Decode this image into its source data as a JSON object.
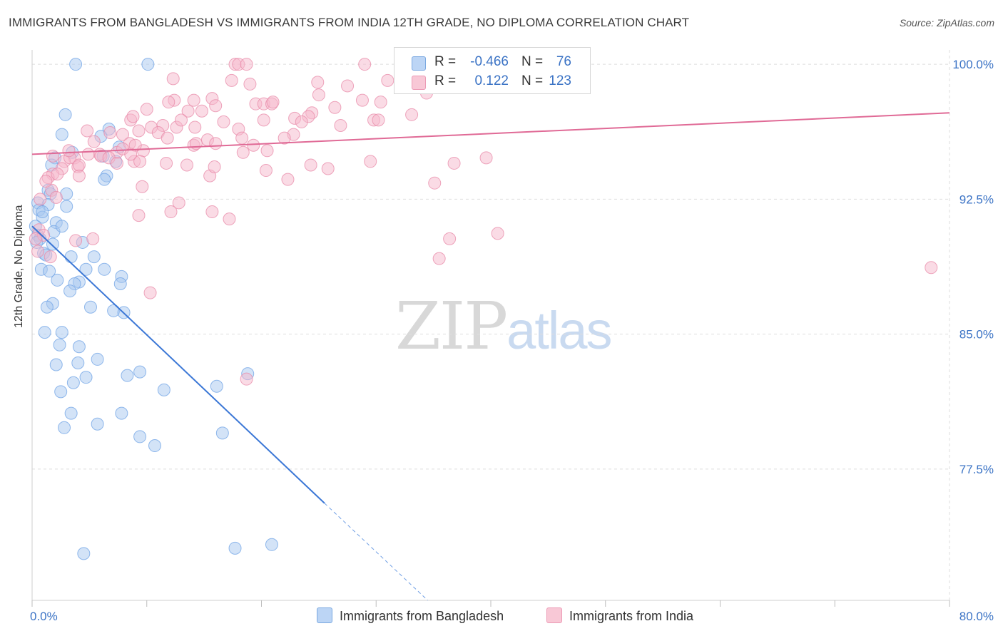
{
  "title": "IMMIGRANTS FROM BANGLADESH VS IMMIGRANTS FROM INDIA 12TH GRADE, NO DIPLOMA CORRELATION CHART",
  "source": "Source: ZipAtlas.com",
  "watermark": {
    "zip": "ZIP",
    "atlas": "atlas"
  },
  "legend": {
    "rows": [
      {
        "r_label": "R =",
        "r_value": "-0.466",
        "n_label": "N =",
        "n_value": "76",
        "color": "#a8c8f0"
      },
      {
        "r_label": "R =",
        "r_value": "0.122",
        "n_label": "N =",
        "n_value": "123",
        "color": "#f6b8cc"
      }
    ]
  },
  "bottom_legend": [
    {
      "label": "Immigrants from Bangladesh",
      "color": "#a8c8f0"
    },
    {
      "label": "Immigrants from India",
      "color": "#f6b8cc"
    }
  ],
  "chart_data": {
    "type": "scatter",
    "title": "IMMIGRANTS FROM BANGLADESH VS IMMIGRANTS FROM INDIA 12TH GRADE, NO DIPLOMA CORRELATION CHART",
    "xlabel": "",
    "ylabel": "12th Grade, No Diploma",
    "xlim": [
      0,
      80
    ],
    "ylim": [
      70.2,
      100.8
    ],
    "x_tick_labels": [
      {
        "value": 0,
        "label": "0.0%"
      },
      {
        "value": 80,
        "label": "80.0%"
      }
    ],
    "y_tick_labels": [
      {
        "value": 100.0,
        "label": "100.0%"
      },
      {
        "value": 92.5,
        "label": "92.5%"
      },
      {
        "value": 85.0,
        "label": "85.0%"
      },
      {
        "value": 77.5,
        "label": "77.5%"
      }
    ],
    "grid": true,
    "legend_position": "top-center",
    "series": [
      {
        "name": "Immigrants from Bangladesh",
        "color": "#6fa3e6",
        "fill": "#a8c8f0",
        "R": -0.466,
        "N": 76,
        "trend": {
          "x": [
            0,
            25.5
          ],
          "y": [
            91.0,
            75.6
          ]
        },
        "trend_dashed": {
          "x": [
            25.5,
            34.5
          ],
          "y": [
            75.6,
            70.2
          ]
        },
        "points": [
          [
            3.8,
            100.0
          ],
          [
            10.1,
            100.0
          ],
          [
            2.9,
            97.2
          ],
          [
            2.6,
            96.1
          ],
          [
            6.7,
            96.4
          ],
          [
            6.0,
            96.0
          ],
          [
            7.6,
            95.4
          ],
          [
            2.0,
            94.8
          ],
          [
            3.5,
            95.1
          ],
          [
            1.7,
            94.4
          ],
          [
            7.3,
            94.6
          ],
          [
            6.2,
            94.9
          ],
          [
            6.5,
            93.8
          ],
          [
            6.3,
            93.6
          ],
          [
            1.4,
            93.0
          ],
          [
            1.6,
            92.8
          ],
          [
            3.0,
            92.8
          ],
          [
            0.5,
            92.3
          ],
          [
            1.4,
            92.2
          ],
          [
            3.0,
            92.1
          ],
          [
            0.6,
            91.9
          ],
          [
            0.9,
            91.5
          ],
          [
            2.1,
            91.2
          ],
          [
            0.3,
            91.0
          ],
          [
            0.5,
            90.5
          ],
          [
            1.9,
            90.7
          ],
          [
            0.7,
            90.3
          ],
          [
            1.8,
            90.0
          ],
          [
            4.4,
            90.1
          ],
          [
            1.0,
            89.5
          ],
          [
            3.4,
            89.3
          ],
          [
            5.4,
            89.3
          ],
          [
            0.8,
            88.6
          ],
          [
            1.5,
            88.5
          ],
          [
            4.7,
            88.6
          ],
          [
            6.3,
            88.6
          ],
          [
            7.8,
            88.2
          ],
          [
            2.2,
            88.0
          ],
          [
            4.1,
            87.9
          ],
          [
            3.7,
            87.8
          ],
          [
            7.7,
            87.8
          ],
          [
            3.3,
            87.4
          ],
          [
            1.8,
            86.7
          ],
          [
            1.3,
            86.5
          ],
          [
            5.1,
            86.5
          ],
          [
            7.1,
            86.3
          ],
          [
            8.0,
            86.2
          ],
          [
            1.1,
            85.1
          ],
          [
            2.6,
            85.1
          ],
          [
            4.1,
            84.3
          ],
          [
            2.4,
            84.4
          ],
          [
            5.7,
            83.6
          ],
          [
            4.0,
            83.4
          ],
          [
            2.1,
            83.3
          ],
          [
            18.8,
            82.8
          ],
          [
            9.4,
            82.9
          ],
          [
            8.3,
            82.7
          ],
          [
            4.7,
            82.6
          ],
          [
            3.6,
            82.3
          ],
          [
            16.1,
            82.1
          ],
          [
            11.5,
            81.9
          ],
          [
            2.5,
            81.8
          ],
          [
            3.4,
            80.6
          ],
          [
            7.8,
            80.6
          ],
          [
            5.7,
            80.0
          ],
          [
            2.8,
            79.8
          ],
          [
            16.6,
            79.5
          ],
          [
            9.4,
            79.3
          ],
          [
            10.7,
            78.8
          ],
          [
            4.5,
            72.8
          ],
          [
            17.7,
            73.1
          ],
          [
            20.9,
            73.3
          ],
          [
            0.4,
            90.1
          ],
          [
            1.2,
            89.4
          ],
          [
            0.9,
            91.8
          ],
          [
            2.6,
            91.0
          ]
        ]
      },
      {
        "name": "Immigrants from India",
        "color": "#e889a8",
        "fill": "#f6b8cc",
        "R": 0.122,
        "N": 123,
        "trend": {
          "x": [
            0,
            80
          ],
          "y": [
            95.0,
            97.3
          ]
        },
        "points": [
          [
            17.7,
            100.0
          ],
          [
            18.0,
            100.0
          ],
          [
            18.7,
            100.0
          ],
          [
            29.0,
            100.0
          ],
          [
            12.3,
            99.2
          ],
          [
            17.4,
            99.1
          ],
          [
            24.9,
            99.0
          ],
          [
            19.0,
            98.9
          ],
          [
            27.5,
            98.8
          ],
          [
            31.0,
            99.1
          ],
          [
            32.6,
            99.0
          ],
          [
            25.0,
            98.3
          ],
          [
            12.4,
            98.0
          ],
          [
            14.1,
            98.0
          ],
          [
            15.7,
            98.1
          ],
          [
            11.9,
            97.9
          ],
          [
            16.0,
            97.7
          ],
          [
            19.5,
            97.8
          ],
          [
            20.2,
            97.8
          ],
          [
            20.9,
            97.8
          ],
          [
            28.8,
            98.0
          ],
          [
            30.4,
            97.9
          ],
          [
            10.0,
            97.5
          ],
          [
            13.6,
            97.4
          ],
          [
            14.8,
            97.4
          ],
          [
            24.4,
            97.3
          ],
          [
            24.1,
            97.1
          ],
          [
            33.1,
            97.2
          ],
          [
            22.9,
            97.0
          ],
          [
            29.8,
            96.9
          ],
          [
            16.7,
            96.8
          ],
          [
            20.2,
            96.9
          ],
          [
            23.5,
            96.8
          ],
          [
            8.6,
            96.9
          ],
          [
            11.4,
            96.6
          ],
          [
            10.4,
            96.5
          ],
          [
            26.9,
            96.6
          ],
          [
            18.0,
            96.4
          ],
          [
            12.6,
            96.5
          ],
          [
            4.8,
            96.3
          ],
          [
            9.3,
            96.3
          ],
          [
            7.9,
            96.1
          ],
          [
            11.0,
            96.2
          ],
          [
            22.8,
            96.1
          ],
          [
            22.0,
            95.9
          ],
          [
            18.3,
            95.9
          ],
          [
            15.3,
            95.8
          ],
          [
            11.8,
            95.9
          ],
          [
            5.4,
            95.7
          ],
          [
            14.1,
            95.5
          ],
          [
            16.0,
            95.6
          ],
          [
            19.3,
            95.5
          ],
          [
            9.7,
            95.2
          ],
          [
            14.3,
            95.6
          ],
          [
            8.5,
            95.6
          ],
          [
            9.0,
            95.5
          ],
          [
            18.4,
            95.1
          ],
          [
            7.4,
            95.1
          ],
          [
            5.9,
            95.0
          ],
          [
            4.9,
            95.0
          ],
          [
            6.0,
            94.9
          ],
          [
            3.7,
            94.8
          ],
          [
            2.8,
            94.6
          ],
          [
            3.3,
            94.8
          ],
          [
            1.8,
            94.9
          ],
          [
            6.7,
            94.8
          ],
          [
            7.4,
            94.5
          ],
          [
            8.9,
            94.6
          ],
          [
            11.7,
            94.5
          ],
          [
            13.5,
            94.4
          ],
          [
            24.3,
            94.4
          ],
          [
            29.5,
            94.6
          ],
          [
            36.8,
            94.5
          ],
          [
            39.6,
            94.8
          ],
          [
            20.4,
            94.1
          ],
          [
            4.0,
            94.3
          ],
          [
            2.6,
            94.2
          ],
          [
            1.8,
            93.9
          ],
          [
            1.4,
            93.7
          ],
          [
            4.1,
            93.8
          ],
          [
            15.5,
            93.8
          ],
          [
            22.3,
            93.6
          ],
          [
            35.1,
            93.4
          ],
          [
            9.6,
            93.2
          ],
          [
            1.7,
            93.0
          ],
          [
            2.1,
            92.6
          ],
          [
            0.7,
            92.5
          ],
          [
            12.8,
            92.3
          ],
          [
            15.7,
            91.8
          ],
          [
            12.1,
            91.8
          ],
          [
            9.3,
            91.6
          ],
          [
            17.2,
            91.4
          ],
          [
            0.6,
            90.8
          ],
          [
            1.0,
            90.5
          ],
          [
            3.8,
            90.2
          ],
          [
            0.3,
            90.3
          ],
          [
            5.3,
            90.3
          ],
          [
            36.4,
            90.3
          ],
          [
            40.6,
            90.6
          ],
          [
            0.5,
            89.6
          ],
          [
            1.6,
            89.3
          ],
          [
            35.5,
            89.2
          ],
          [
            78.4,
            88.7
          ],
          [
            10.3,
            87.3
          ],
          [
            18.7,
            82.5
          ],
          [
            8.8,
            97.1
          ],
          [
            4.1,
            94.4
          ],
          [
            6.8,
            96.2
          ],
          [
            25.8,
            94.2
          ],
          [
            21.0,
            97.9
          ],
          [
            2.2,
            93.9
          ],
          [
            9.4,
            94.6
          ],
          [
            15.9,
            94.3
          ],
          [
            26.4,
            97.6
          ],
          [
            34.4,
            98.4
          ],
          [
            14.2,
            96.5
          ],
          [
            3.2,
            95.2
          ],
          [
            7.9,
            95.3
          ],
          [
            30.2,
            96.9
          ],
          [
            8.6,
            95.0
          ],
          [
            13.0,
            96.9
          ],
          [
            20.5,
            95.2
          ],
          [
            1.2,
            93.5
          ]
        ]
      }
    ]
  }
}
